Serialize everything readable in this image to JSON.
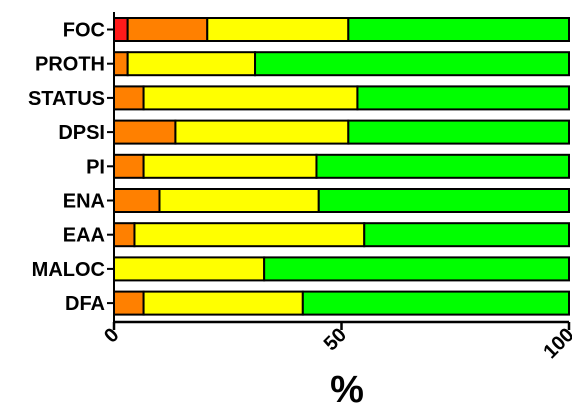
{
  "chart_data": {
    "type": "bar",
    "orientation": "horizontal",
    "stacked": true,
    "percent": true,
    "categories": [
      "FOC",
      "PROTH",
      "STATUS",
      "DPSI",
      "PI",
      "ENA",
      "EAA",
      "MALOC",
      "DFA"
    ],
    "series": [
      {
        "color": "#ff1a1a",
        "values": [
          3,
          0,
          0,
          0,
          0,
          0,
          0,
          0,
          0
        ]
      },
      {
        "color": "#ff8000",
        "values": [
          17.5,
          3,
          6.5,
          13.5,
          6.5,
          10,
          4.5,
          0,
          6.5
        ]
      },
      {
        "color": "#ffff00",
        "values": [
          31,
          28,
          47,
          38,
          38,
          35,
          50.5,
          33,
          35
        ]
      },
      {
        "color": "#00ff00",
        "values": [
          48.5,
          69,
          46.5,
          48.5,
          55.5,
          55,
          45,
          67,
          58.5
        ]
      }
    ],
    "xlim": [
      0,
      100
    ],
    "xticks": [
      "0",
      "50",
      "100"
    ],
    "xlabel": "%",
    "ylabel": "",
    "title": "",
    "grid": false,
    "legend": "none"
  }
}
